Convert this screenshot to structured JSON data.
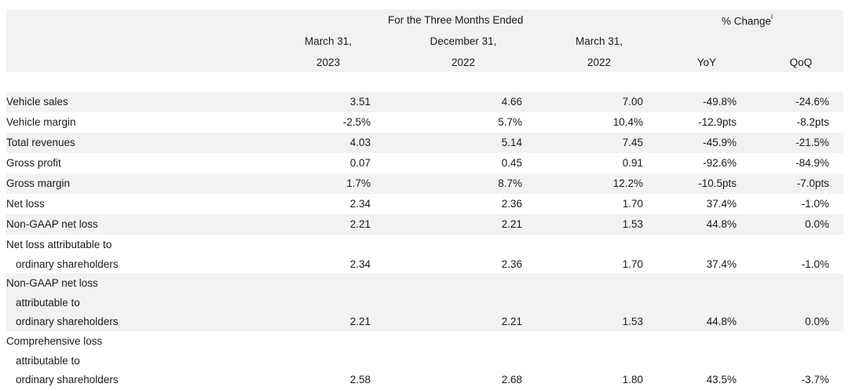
{
  "header": {
    "period_group": "For the Three Months Ended",
    "change_group": "% Change",
    "change_footnote": "i",
    "columns": [
      {
        "line1": "March 31,",
        "line2": "2023"
      },
      {
        "line1": "December 31,",
        "line2": "2022"
      },
      {
        "line1": "March 31,",
        "line2": "2022"
      },
      {
        "line1": "",
        "line2": "YoY"
      },
      {
        "line1": "",
        "line2": "QoQ"
      }
    ]
  },
  "rows": [
    {
      "label": [
        "Vehicle sales"
      ],
      "values": [
        "3.51",
        "4.66",
        "7.00",
        "-49.8%",
        "-24.6%"
      ]
    },
    {
      "label": [
        "Vehicle margin"
      ],
      "values": [
        "-2.5%",
        "5.7%",
        "10.4%",
        "-12.9pts",
        "-8.2pts"
      ]
    },
    {
      "label": [
        "Total revenues"
      ],
      "values": [
        "4.03",
        "5.14",
        "7.45",
        "-45.9%",
        "-21.5%"
      ]
    },
    {
      "label": [
        "Gross profit"
      ],
      "values": [
        "0.07",
        "0.45",
        "0.91",
        "-92.6%",
        "-84.9%"
      ]
    },
    {
      "label": [
        "Gross margin"
      ],
      "values": [
        "1.7%",
        "8.7%",
        "12.2%",
        "-10.5pts",
        "-7.0pts"
      ]
    },
    {
      "label": [
        "Net loss"
      ],
      "values": [
        "2.34",
        "2.36",
        "1.70",
        "37.4%",
        "-1.0%"
      ]
    },
    {
      "label": [
        "Non-GAAP net loss"
      ],
      "values": [
        "2.21",
        "2.21",
        "1.53",
        "44.8%",
        "0.0%"
      ]
    },
    {
      "label": [
        "Net loss attributable to",
        "ordinary shareholders"
      ],
      "values": [
        "2.34",
        "2.36",
        "1.70",
        "37.4%",
        "-1.0%"
      ]
    },
    {
      "label": [
        "Non-GAAP net loss",
        "attributable to",
        "ordinary shareholders"
      ],
      "values": [
        "2.21",
        "2.21",
        "1.53",
        "44.8%",
        "0.0%"
      ]
    },
    {
      "label": [
        "Comprehensive loss",
        "attributable to",
        "ordinary shareholders"
      ],
      "values": [
        "2.58",
        "2.68",
        "1.80",
        "43.5%",
        "-3.7%"
      ]
    }
  ]
}
